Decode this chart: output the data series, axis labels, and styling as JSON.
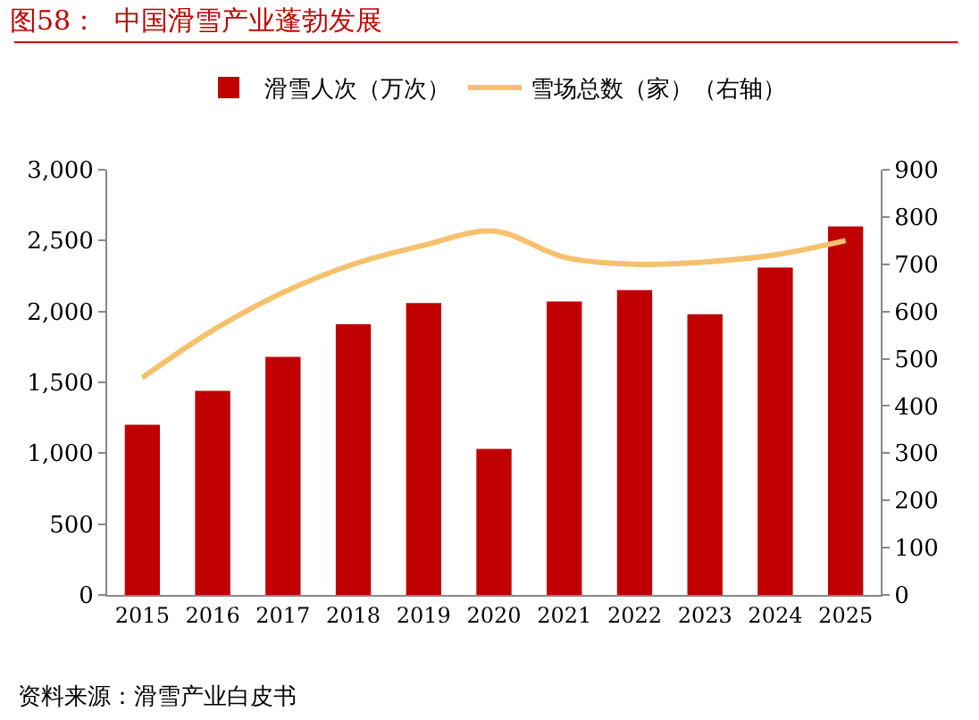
{
  "chart_data": {
    "type": "bar",
    "title": "图58：  中国滑雪产业蓬勃发展",
    "categories": [
      "2015",
      "2016",
      "2017",
      "2018",
      "2019",
      "2020",
      "2021",
      "2022",
      "2023",
      "2024",
      "2025"
    ],
    "series": [
      {
        "name": "滑雪人次（万次）",
        "color": "#c00000",
        "values": [
          1200,
          1440,
          1680,
          1910,
          2060,
          1030,
          2070,
          2150,
          1980,
          2310,
          2600
        ]
      },
      {
        "name": "雪场总数（家）（右轴）",
        "type": "line",
        "axis": "y2",
        "color": "#f6c16f",
        "values": [
          460,
          560,
          640,
          700,
          740,
          770,
          715,
          700,
          705,
          720,
          750
        ]
      }
    ],
    "ylim": [
      0,
      3000
    ],
    "yticks": [
      0,
      {
        "value": 500,
        "label": "500"
      },
      {
        "value": 1000,
        "label": "1,000"
      },
      {
        "value": 1500,
        "label": "1,500"
      },
      {
        "value": 2000,
        "label": "2,000"
      },
      {
        "value": 2500,
        "label": "2,500"
      },
      {
        "value": 3000,
        "label": "3,000"
      }
    ],
    "y2lim": [
      0,
      900
    ],
    "y2ticks": [
      0,
      100,
      200,
      300,
      400,
      500,
      600,
      700,
      800,
      900
    ],
    "grid": false,
    "legend": "top",
    "marker": "none",
    "line_style": "solid",
    "annotations": [
      "资料来源：滑雪产业白皮书"
    ]
  }
}
